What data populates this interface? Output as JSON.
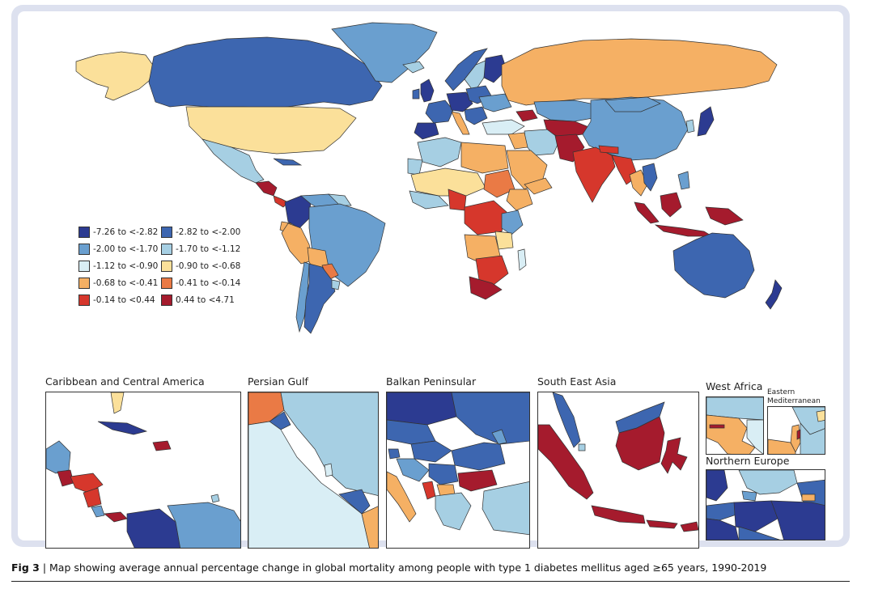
{
  "legend": {
    "items": [
      {
        "label": "-7.26 to <-2.82",
        "color": "#2c3b91"
      },
      {
        "label": "-2.82 to <-2.00",
        "color": "#3d66b0"
      },
      {
        "label": "-2.00 to <-1.70",
        "color": "#6a9fcf"
      },
      {
        "label": "-1.70 to <-1.12",
        "color": "#a6cfe3"
      },
      {
        "label": "-1.12 to <-0.90",
        "color": "#d9eef5"
      },
      {
        "label": "-0.90 to <-0.68",
        "color": "#fbe09a"
      },
      {
        "label": "-0.68 to <-0.41",
        "color": "#f5b064"
      },
      {
        "label": "-0.41 to <-0.14",
        "color": "#ea7a45"
      },
      {
        "label": "-0.14 to <0.44",
        "color": "#d6372c"
      },
      {
        "label": "0.44 to <4.71",
        "color": "#a51b2d"
      }
    ]
  },
  "insets": {
    "caribbean": "Caribbean and Central America",
    "persian_gulf": "Persian Gulf",
    "balkan": "Balkan Peninsular",
    "se_asia": "South East Asia",
    "west_africa": "West Africa",
    "eastern_med": "Eastern Mediterranean",
    "northern_europe": "Northern Europe"
  },
  "caption": {
    "fig": "Fig 3",
    "text": "Map showing average annual percentage change in global mortality among people with type 1 diabetes mellitus aged ≥65 years, 1990-2019"
  }
}
